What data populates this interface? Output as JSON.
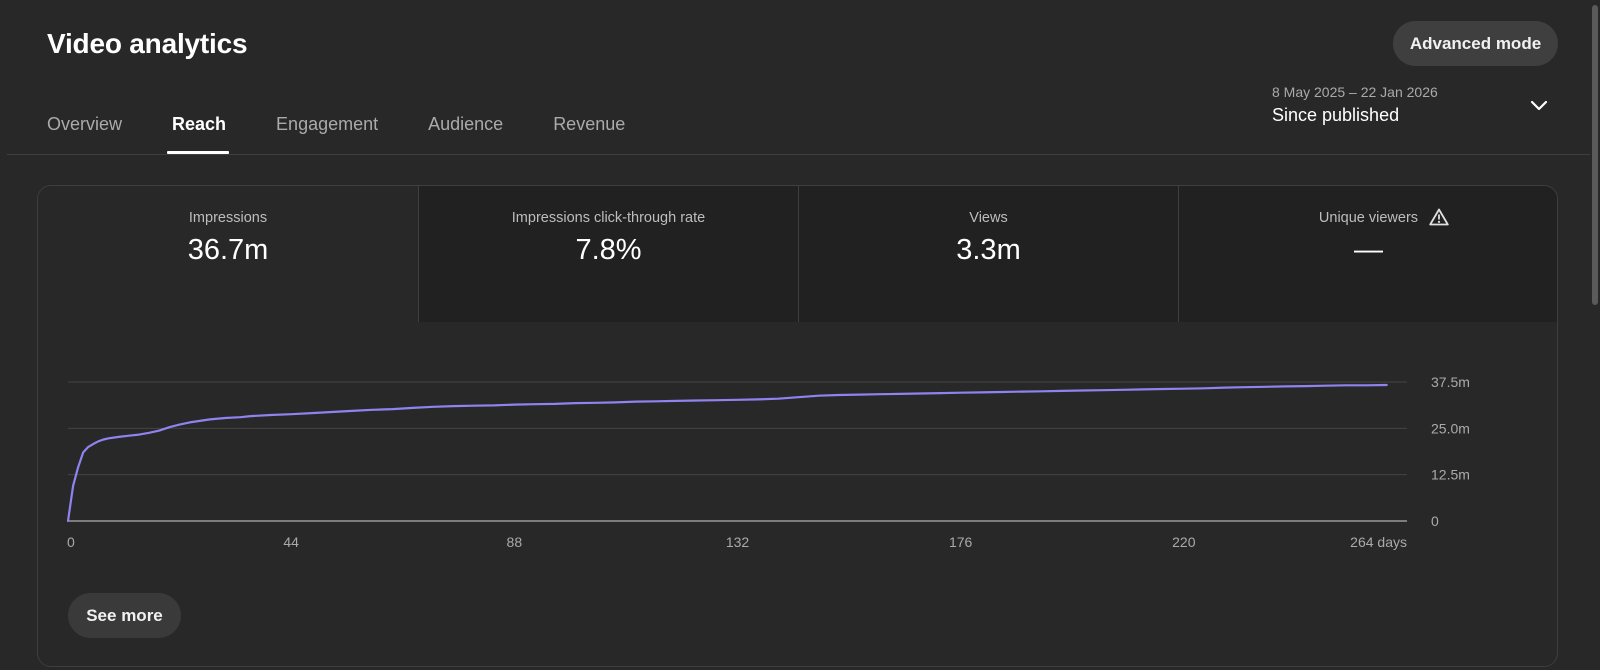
{
  "header": {
    "title": "Video analytics",
    "advanced_mode_label": "Advanced mode"
  },
  "tabs": [
    {
      "label": "Overview",
      "active": false
    },
    {
      "label": "Reach",
      "active": true
    },
    {
      "label": "Engagement",
      "active": false
    },
    {
      "label": "Audience",
      "active": false
    },
    {
      "label": "Revenue",
      "active": false
    }
  ],
  "date_range": {
    "range": "8 May 2025 – 22 Jan 2026",
    "label": "Since published"
  },
  "metrics": [
    {
      "label": "Impressions",
      "value": "36.7m"
    },
    {
      "label": "Impressions click-through rate",
      "value": "7.8%"
    },
    {
      "label": "Views",
      "value": "3.3m"
    },
    {
      "label": "Unique viewers",
      "value": "—",
      "icon": "warning-icon"
    }
  ],
  "see_more_label": "See more",
  "colors": {
    "background": "#282828",
    "line": "#8f83f0",
    "active_tab": "#ffffff"
  },
  "chart_data": {
    "type": "line",
    "series": [
      {
        "x": [
          0,
          1,
          2,
          3,
          4,
          5,
          6,
          7,
          8,
          9,
          10,
          12,
          14,
          16,
          18,
          20,
          22,
          24,
          26,
          28,
          31,
          34,
          36,
          40,
          44,
          48,
          52,
          56,
          60,
          64,
          68,
          72,
          76,
          80,
          84,
          88,
          92,
          96,
          100,
          104,
          108,
          112,
          116,
          120,
          124,
          128,
          132,
          136,
          140,
          144,
          148,
          152,
          156,
          160,
          164,
          168,
          172,
          176,
          180,
          184,
          188,
          192,
          196,
          200,
          204,
          208,
          212,
          216,
          220,
          224,
          228,
          232,
          236,
          240,
          244,
          248,
          252,
          256,
          260
        ],
        "y": [
          0,
          9.5,
          14.5,
          18.5,
          20.0,
          20.8,
          21.5,
          22.0,
          22.3,
          22.5,
          22.7,
          23.0,
          23.3,
          23.8,
          24.4,
          25.3,
          26.0,
          26.6,
          27.0,
          27.4,
          27.8,
          28.0,
          28.3,
          28.6,
          28.8,
          29.1,
          29.4,
          29.7,
          30.0,
          30.2,
          30.5,
          30.8,
          31.0,
          31.1,
          31.2,
          31.4,
          31.5,
          31.6,
          31.8,
          31.9,
          32.0,
          32.2,
          32.3,
          32.4,
          32.5,
          32.6,
          32.7,
          32.8,
          33.0,
          33.4,
          33.8,
          34.0,
          34.1,
          34.2,
          34.3,
          34.4,
          34.5,
          34.6,
          34.7,
          34.8,
          34.9,
          35.0,
          35.1,
          35.2,
          35.3,
          35.4,
          35.5,
          35.6,
          35.7,
          35.8,
          36.0,
          36.1,
          36.2,
          36.3,
          36.4,
          36.5,
          36.6,
          36.6,
          36.7
        ]
      }
    ],
    "x_ticks": [
      "0",
      "44",
      "88",
      "132",
      "176",
      "220",
      "264 days"
    ],
    "x_tick_values": [
      0,
      44,
      88,
      132,
      176,
      220,
      264
    ],
    "y_ticks": [
      "0",
      "12.5m",
      "25.0m",
      "37.5m"
    ],
    "y_tick_values": [
      0,
      12.5,
      25,
      37.5
    ],
    "xlim": [
      0,
      264
    ],
    "ylim": [
      0,
      37.5
    ],
    "y_unit": "millions",
    "grid": true
  }
}
